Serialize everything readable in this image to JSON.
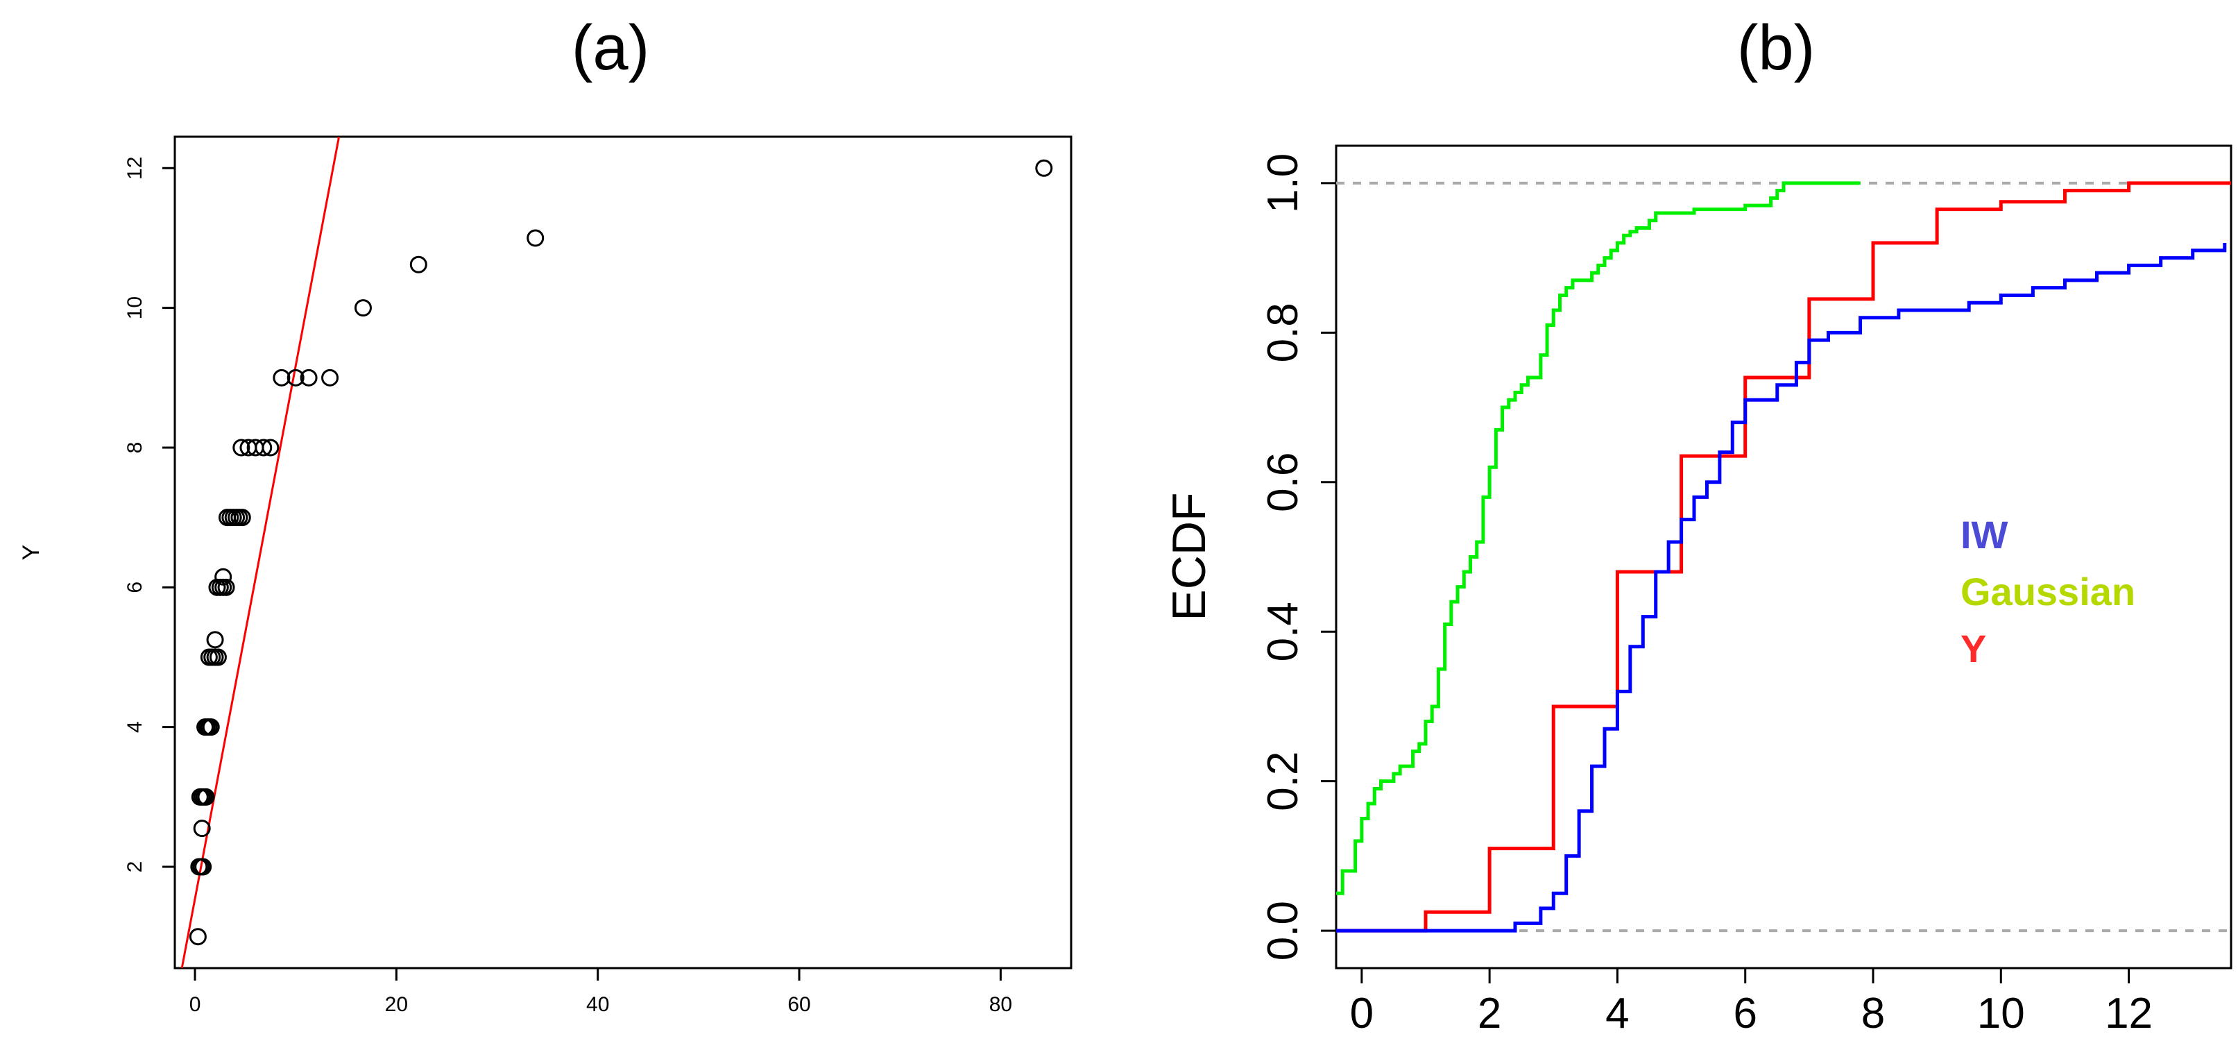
{
  "chart_data": [
    {
      "panel": "(a)",
      "type": "scatter",
      "title": "(a)",
      "xlabel": "",
      "ylabel": "Y",
      "xlim": [
        -2,
        87
      ],
      "ylim": [
        0.55,
        12.45
      ],
      "xticks": [
        0,
        20,
        40,
        60,
        80
      ],
      "yticks": [
        2,
        4,
        6,
        8,
        10,
        12
      ],
      "grid": false,
      "points": [
        [
          0.3,
          1
        ],
        [
          0.4,
          2
        ],
        [
          0.6,
          2
        ],
        [
          0.8,
          2
        ],
        [
          0.7,
          2.55
        ],
        [
          0.5,
          3
        ],
        [
          0.7,
          3
        ],
        [
          0.9,
          3
        ],
        [
          1.1,
          3
        ],
        [
          1.0,
          4
        ],
        [
          1.2,
          4
        ],
        [
          1.4,
          4
        ],
        [
          1.6,
          4
        ],
        [
          1.4,
          5
        ],
        [
          1.7,
          5
        ],
        [
          2.0,
          5
        ],
        [
          2.3,
          5
        ],
        [
          2.0,
          5.25
        ],
        [
          2.2,
          6
        ],
        [
          2.5,
          6
        ],
        [
          2.8,
          6
        ],
        [
          3.1,
          6
        ],
        [
          2.8,
          6.15
        ],
        [
          3.2,
          7
        ],
        [
          3.5,
          7
        ],
        [
          3.8,
          7
        ],
        [
          4.1,
          7
        ],
        [
          4.4,
          7
        ],
        [
          4.7,
          7
        ],
        [
          4.6,
          8
        ],
        [
          5.3,
          8
        ],
        [
          6.0,
          8
        ],
        [
          6.8,
          8
        ],
        [
          7.5,
          8
        ],
        [
          8.6,
          9
        ],
        [
          10.0,
          9
        ],
        [
          11.3,
          9
        ],
        [
          13.4,
          9
        ],
        [
          16.7,
          10
        ],
        [
          22.2,
          10.62
        ],
        [
          33.8,
          11
        ],
        [
          84.3,
          12
        ]
      ],
      "fit_line": {
        "color": "#ff0000",
        "from": [
          -1.3,
          0.55
        ],
        "to": [
          14.3,
          12.45
        ]
      }
    },
    {
      "panel": "(b)",
      "type": "line",
      "title": "(b)",
      "xlabel": "",
      "ylabel": "ECDF",
      "xlim": [
        -0.4,
        13.6
      ],
      "ylim": [
        -0.05,
        1.05
      ],
      "xticks": [
        0,
        2,
        4,
        6,
        8,
        10,
        12
      ],
      "yticks": [
        0.0,
        0.2,
        0.4,
        0.6,
        0.8,
        1.0
      ],
      "grid": false,
      "reference_lines": [
        0.0,
        1.0
      ],
      "legend": {
        "position": "right",
        "entries": [
          {
            "label": "IW",
            "color": "#4b4bd6"
          },
          {
            "label": "Gaussian",
            "color": "#b4d800"
          },
          {
            "label": "Y",
            "color": "#ff2b2b"
          }
        ]
      },
      "series": [
        {
          "name": "Gaussian",
          "color": "#00ee00",
          "step": true,
          "x": [
            -0.4,
            -0.3,
            -0.2,
            -0.1,
            0.0,
            0.1,
            0.2,
            0.3,
            0.4,
            0.5,
            0.6,
            0.8,
            0.9,
            1.0,
            1.1,
            1.2,
            1.3,
            1.4,
            1.5,
            1.6,
            1.7,
            1.8,
            1.9,
            2.0,
            2.1,
            2.2,
            2.3,
            2.4,
            2.5,
            2.6,
            2.8,
            2.9,
            3.0,
            3.1,
            3.2,
            3.3,
            3.4,
            3.6,
            3.7,
            3.8,
            3.9,
            4.0,
            4.1,
            4.2,
            4.3,
            4.5,
            4.6,
            5.0,
            5.2,
            6.0,
            6.4,
            6.5,
            6.6,
            6.8,
            7.8
          ],
          "y": [
            0.05,
            0.08,
            0.08,
            0.12,
            0.15,
            0.17,
            0.19,
            0.2,
            0.2,
            0.21,
            0.22,
            0.24,
            0.25,
            0.28,
            0.3,
            0.35,
            0.41,
            0.44,
            0.46,
            0.48,
            0.5,
            0.52,
            0.58,
            0.62,
            0.67,
            0.7,
            0.71,
            0.72,
            0.73,
            0.74,
            0.77,
            0.81,
            0.83,
            0.85,
            0.86,
            0.87,
            0.87,
            0.88,
            0.89,
            0.9,
            0.91,
            0.92,
            0.93,
            0.935,
            0.94,
            0.95,
            0.96,
            0.96,
            0.965,
            0.97,
            0.98,
            0.99,
            1.0,
            1.0,
            1.0
          ]
        },
        {
          "name": "Y",
          "color": "#ff0000",
          "step": true,
          "x": [
            -0.4,
            1.0,
            2.0,
            3.0,
            4.0,
            5.0,
            6.0,
            7.0,
            8.0,
            9.0,
            10.0,
            11.0,
            12.0,
            13.6
          ],
          "y": [
            0.0,
            0.025,
            0.11,
            0.3,
            0.48,
            0.635,
            0.74,
            0.845,
            0.92,
            0.965,
            0.975,
            0.99,
            1.0,
            1.0
          ]
        },
        {
          "name": "IW",
          "color": "#0000ff",
          "step": true,
          "x": [
            -0.4,
            2.4,
            2.8,
            3.0,
            3.2,
            3.4,
            3.6,
            3.8,
            4.0,
            4.2,
            4.4,
            4.6,
            4.8,
            5.0,
            5.2,
            5.4,
            5.6,
            5.8,
            6.0,
            6.5,
            6.8,
            7.0,
            7.3,
            7.8,
            8.4,
            9.5,
            10.0,
            10.5,
            11.0,
            11.5,
            12.0,
            12.5,
            13.0,
            13.5
          ],
          "y": [
            0.0,
            0.01,
            0.03,
            0.05,
            0.1,
            0.16,
            0.22,
            0.27,
            0.32,
            0.38,
            0.42,
            0.48,
            0.52,
            0.55,
            0.58,
            0.6,
            0.64,
            0.68,
            0.71,
            0.73,
            0.76,
            0.79,
            0.8,
            0.82,
            0.83,
            0.84,
            0.85,
            0.86,
            0.87,
            0.88,
            0.89,
            0.9,
            0.91,
            0.92
          ]
        }
      ]
    }
  ]
}
